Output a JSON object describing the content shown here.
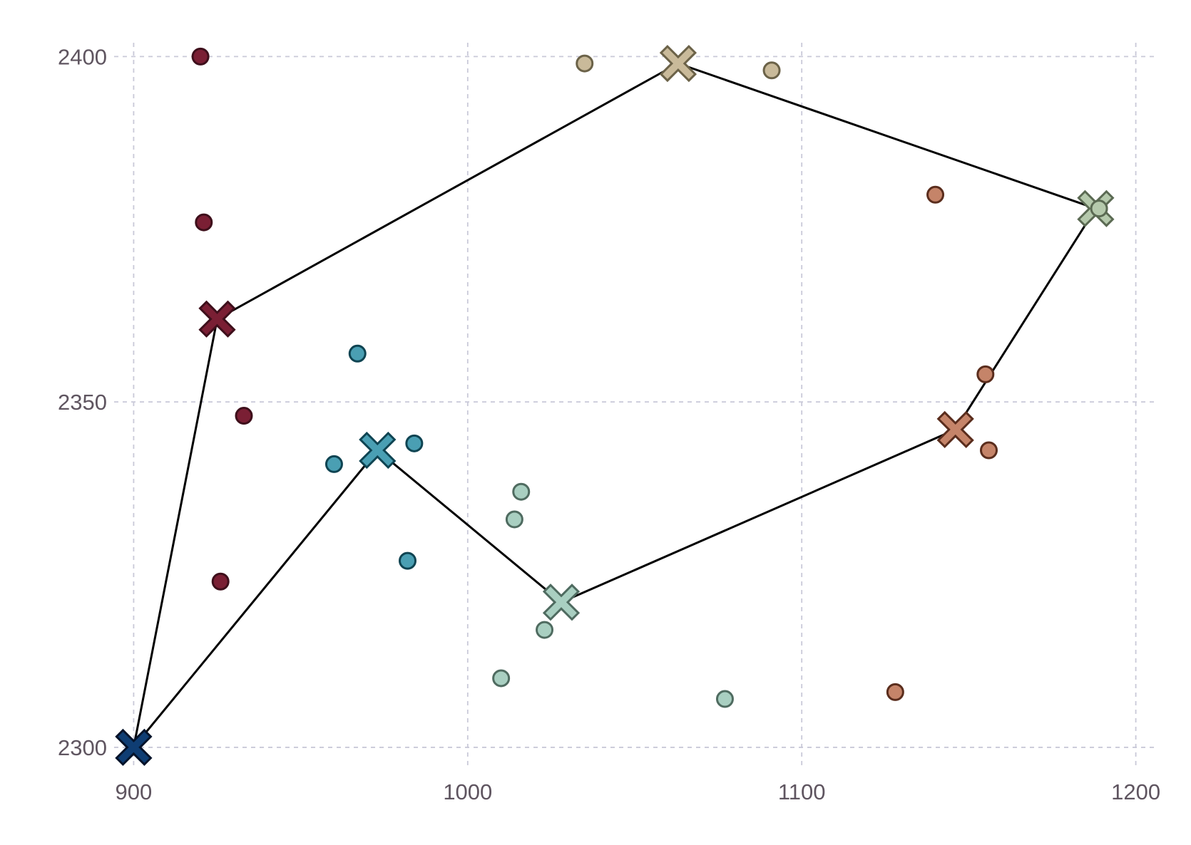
{
  "chart_data": {
    "type": "scatter",
    "title": "",
    "xlabel": "",
    "ylabel": "",
    "xlim": [
      895,
      1205
    ],
    "ylim": [
      2297,
      2402
    ],
    "x_ticks": [
      900,
      1000,
      1100,
      1200
    ],
    "y_ticks": [
      2300,
      2350,
      2400
    ],
    "x_tick_labels": [
      "900",
      "1000",
      "1100",
      "1200"
    ],
    "y_tick_labels": [
      "2300",
      "2350",
      "2400"
    ],
    "grid": true,
    "legend": "none",
    "clusters": [
      {
        "color": "#7a1f34",
        "edge": "#3e0f1b",
        "center": [
          925,
          2362
        ],
        "points": [
          [
            920,
            2400
          ],
          [
            921,
            2376
          ],
          [
            933,
            2348
          ],
          [
            926,
            2324
          ]
        ]
      },
      {
        "color": "#4a9fb3",
        "edge": "#0f4452",
        "center": [
          973,
          2343
        ],
        "points": [
          [
            967,
            2357
          ],
          [
            960,
            2341
          ],
          [
            984,
            2344
          ],
          [
            982,
            2327
          ]
        ]
      },
      {
        "color": "#a9cfc1",
        "edge": "#4f6b60",
        "center": [
          1028,
          2321
        ],
        "points": [
          [
            1016,
            2337
          ],
          [
            1014,
            2333
          ],
          [
            1023,
            2317
          ],
          [
            1010,
            2310
          ],
          [
            1077,
            2307
          ]
        ]
      },
      {
        "color": "#c9ba9a",
        "edge": "#6b6248",
        "center": [
          1063,
          2399
        ],
        "points": [
          [
            1035,
            2399
          ],
          [
            1091,
            2398
          ]
        ]
      },
      {
        "color": "#b5c9ac",
        "edge": "#5b6a53",
        "center": [
          1188,
          2378
        ],
        "points": [
          [
            1189,
            2378
          ]
        ]
      },
      {
        "color": "#c58469",
        "edge": "#5a2d1d",
        "center": [
          1146,
          2346
        ],
        "points": [
          [
            1140,
            2380
          ],
          [
            1155,
            2354
          ],
          [
            1156,
            2343
          ],
          [
            1128,
            2308
          ]
        ]
      },
      {
        "color": "#0f3d73",
        "edge": "#04132a",
        "center": [
          900,
          2300
        ],
        "points": []
      }
    ],
    "route": [
      [
        900,
        2300
      ],
      [
        925,
        2362
      ],
      [
        1063,
        2399
      ],
      [
        1188,
        2378
      ],
      [
        1146,
        2346
      ],
      [
        1028,
        2321
      ],
      [
        973,
        2343
      ],
      [
        900,
        2300
      ]
    ]
  }
}
